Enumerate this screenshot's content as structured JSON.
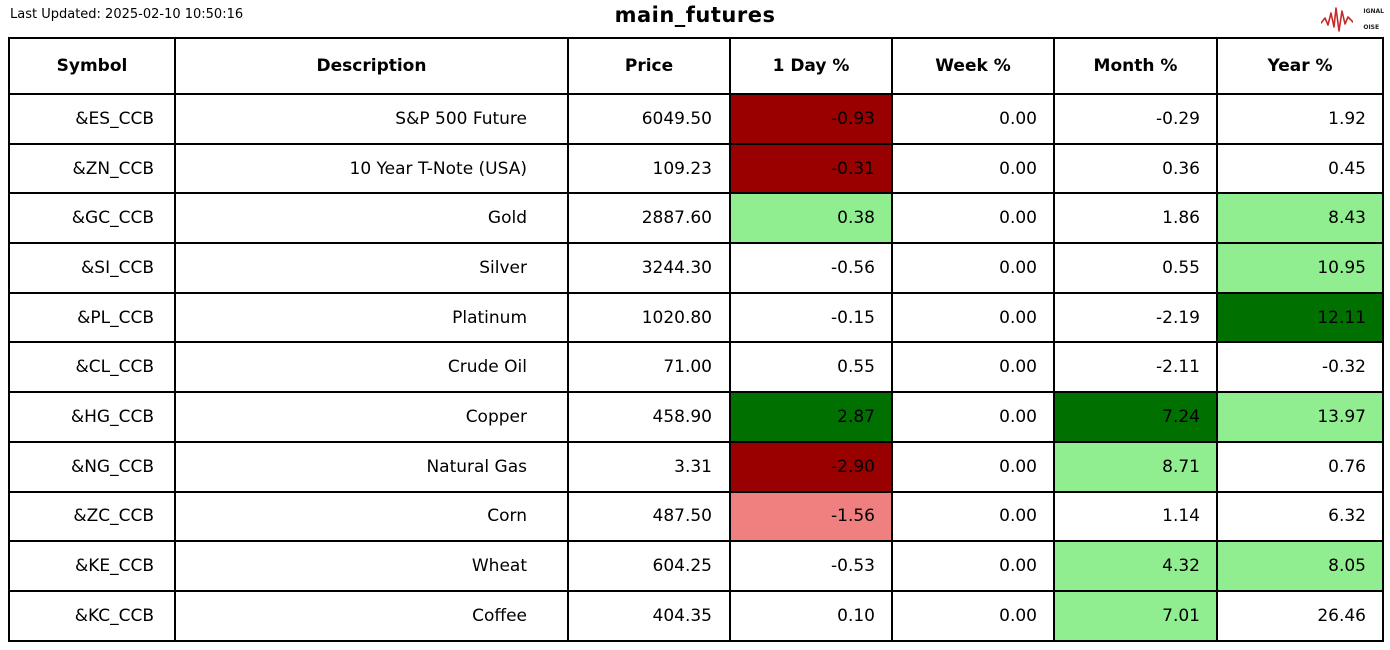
{
  "header": {
    "last_updated": "Last Updated: 2025-02-10 10:50:16"
  },
  "logo": {
    "s": "S",
    "ignal": "IGNAL",
    "two": "2",
    "n": "N",
    "oise": "OISE"
  },
  "colors": {
    "negative_strong": "#990000",
    "negative_mild": "#F08080",
    "positive_mild": "#90EE90",
    "positive_strong": "#007000",
    "logo_red": "#C62A2A",
    "border": "#000000"
  },
  "chart_data": {
    "type": "table",
    "title": "main_futures",
    "columns": [
      "Symbol",
      "Description",
      "Price",
      "1 Day %",
      "Week %",
      "Month %",
      "Year %"
    ],
    "rows": [
      {
        "symbol": "&ES_CCB",
        "description": "S&P 500 Future",
        "price": "6049.50",
        "day": "-0.93",
        "week": "0.00",
        "month": "-0.29",
        "year": "1.92",
        "bg": {
          "day": "negative_strong"
        }
      },
      {
        "symbol": "&ZN_CCB",
        "description": "10 Year T-Note (USA)",
        "price": "109.23",
        "day": "-0.31",
        "week": "0.00",
        "month": "0.36",
        "year": "0.45",
        "bg": {
          "day": "negative_strong"
        }
      },
      {
        "symbol": "&GC_CCB",
        "description": "Gold",
        "price": "2887.60",
        "day": "0.38",
        "week": "0.00",
        "month": "1.86",
        "year": "8.43",
        "bg": {
          "day": "positive_mild",
          "year": "positive_mild"
        }
      },
      {
        "symbol": "&SI_CCB",
        "description": "Silver",
        "price": "3244.30",
        "day": "-0.56",
        "week": "0.00",
        "month": "0.55",
        "year": "10.95",
        "bg": {
          "year": "positive_mild"
        }
      },
      {
        "symbol": "&PL_CCB",
        "description": "Platinum",
        "price": "1020.80",
        "day": "-0.15",
        "week": "0.00",
        "month": "-2.19",
        "year": "12.11",
        "bg": {
          "year": "positive_strong"
        }
      },
      {
        "symbol": "&CL_CCB",
        "description": "Crude Oil",
        "price": "71.00",
        "day": "0.55",
        "week": "0.00",
        "month": "-2.11",
        "year": "-0.32",
        "bg": {}
      },
      {
        "symbol": "&HG_CCB",
        "description": "Copper",
        "price": "458.90",
        "day": "2.87",
        "week": "0.00",
        "month": "7.24",
        "year": "13.97",
        "bg": {
          "day": "positive_strong",
          "month": "positive_strong",
          "year": "positive_mild"
        }
      },
      {
        "symbol": "&NG_CCB",
        "description": "Natural Gas",
        "price": "3.31",
        "day": "-2.90",
        "week": "0.00",
        "month": "8.71",
        "year": "0.76",
        "bg": {
          "day": "negative_strong",
          "month": "positive_mild"
        }
      },
      {
        "symbol": "&ZC_CCB",
        "description": "Corn",
        "price": "487.50",
        "day": "-1.56",
        "week": "0.00",
        "month": "1.14",
        "year": "6.32",
        "bg": {
          "day": "negative_mild"
        }
      },
      {
        "symbol": "&KE_CCB",
        "description": "Wheat",
        "price": "604.25",
        "day": "-0.53",
        "week": "0.00",
        "month": "4.32",
        "year": "8.05",
        "bg": {
          "month": "positive_mild",
          "year": "positive_mild"
        }
      },
      {
        "symbol": "&KC_CCB",
        "description": "Coffee",
        "price": "404.35",
        "day": "0.10",
        "week": "0.00",
        "month": "7.01",
        "year": "26.46",
        "bg": {
          "month": "positive_mild"
        }
      }
    ]
  }
}
